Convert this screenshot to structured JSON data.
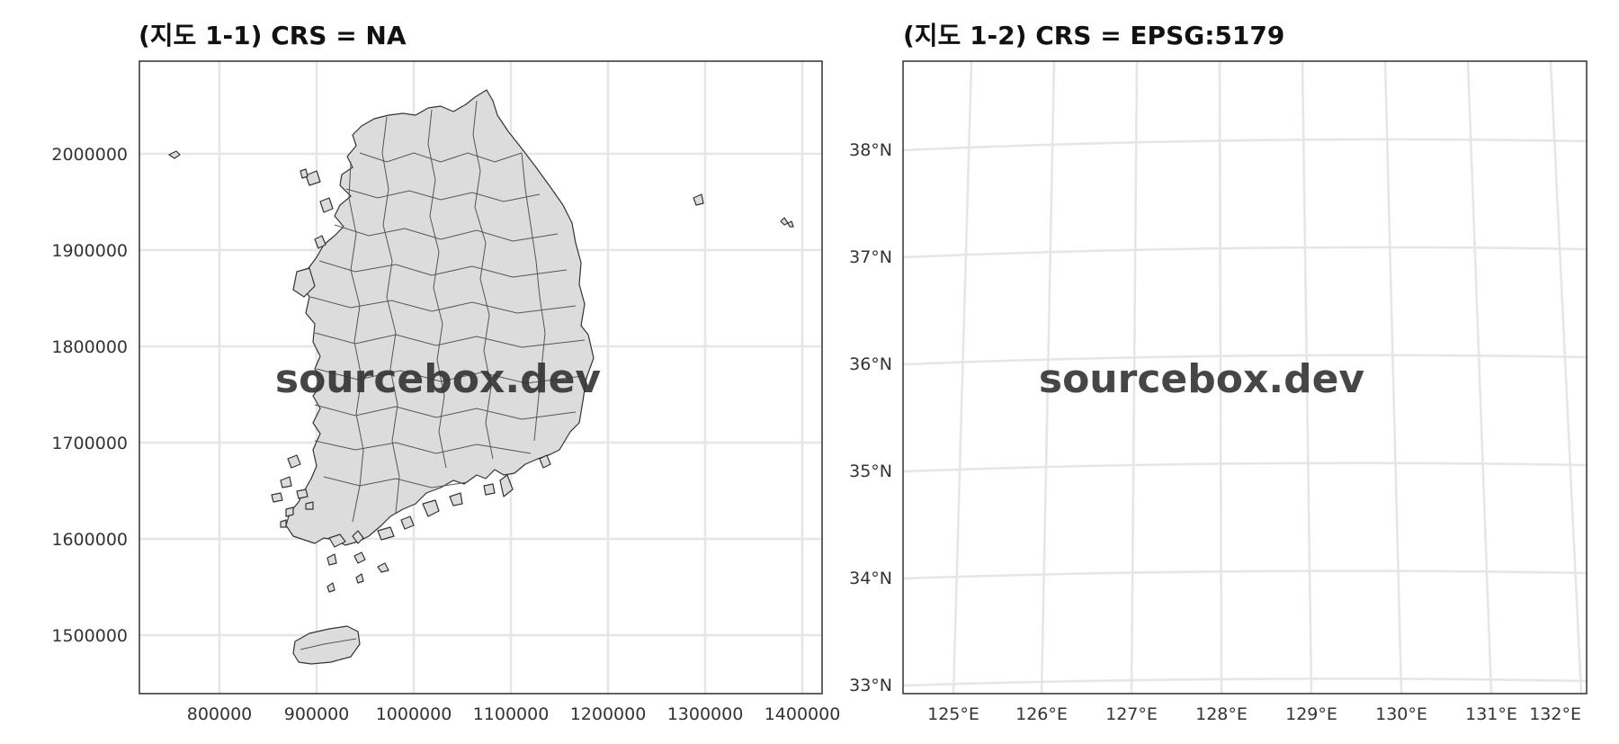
{
  "panels": [
    {
      "title": "(지도 1-1) CRS = NA",
      "watermark": "sourcebox.dev",
      "x_ticks": [
        "800000",
        "900000",
        "1000000",
        "1100000",
        "1200000",
        "1300000",
        "1400000"
      ],
      "y_ticks": [
        "2000000",
        "1900000",
        "1800000",
        "1700000",
        "1600000",
        "1500000"
      ],
      "crs": "NA"
    },
    {
      "title": "(지도 1-2) CRS = EPSG:5179",
      "watermark": "sourcebox.dev",
      "x_ticks": [
        "125°E",
        "126°E",
        "127°E",
        "128°E",
        "129°E",
        "130°E",
        "131°E",
        "132°E"
      ],
      "y_ticks": [
        "38°N",
        "37°N",
        "36°N",
        "35°N",
        "34°N",
        "33°N"
      ],
      "crs": "EPSG:5179"
    }
  ],
  "colors": {
    "land": "#dcdcdc",
    "border": "#333333",
    "grid": "#e6e6e6",
    "panel_bg": "#ffffff"
  }
}
